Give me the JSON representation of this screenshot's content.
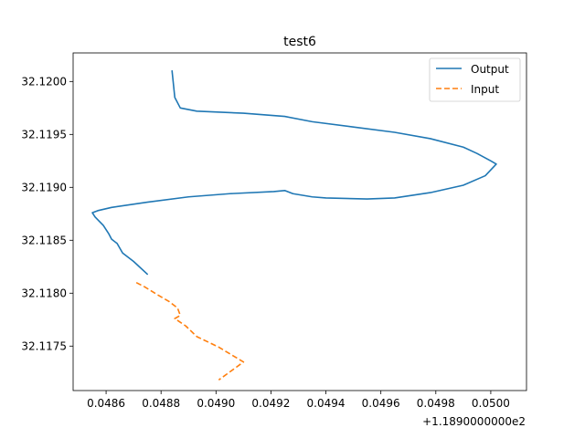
{
  "chart_data": {
    "type": "line",
    "title": "test6",
    "xlabel": "",
    "ylabel": "",
    "x_offset_label": "+1.1890000000e2",
    "x_tick_labels": [
      "0.0486",
      "0.0488",
      "0.0490",
      "0.0492",
      "0.0494",
      "0.0496",
      "0.0498",
      "0.0500"
    ],
    "y_tick_labels": [
      "32.1175",
      "32.1180",
      "32.1185",
      "32.1190",
      "32.1195",
      "32.1200"
    ],
    "xlim": [
      0.04848,
      0.05013
    ],
    "ylim": [
      32.11708,
      32.12027
    ],
    "grid": false,
    "legend": {
      "position": "upper-right",
      "entries": [
        "Output",
        "Input"
      ]
    },
    "colors": {
      "Output": "#1f77b4",
      "Input": "#ff7f0e"
    },
    "series": [
      {
        "name": "Output",
        "style": "solid",
        "points": [
          [
            0.04884,
            32.1201
          ],
          [
            0.04885,
            32.11985
          ],
          [
            0.04887,
            32.11975
          ],
          [
            0.04893,
            32.11972
          ],
          [
            0.0491,
            32.1197
          ],
          [
            0.04925,
            32.11967
          ],
          [
            0.04935,
            32.11962
          ],
          [
            0.0495,
            32.11957
          ],
          [
            0.04965,
            32.11952
          ],
          [
            0.04978,
            32.11946
          ],
          [
            0.0499,
            32.11938
          ],
          [
            0.04995,
            32.11932
          ],
          [
            0.05,
            32.11925
          ],
          [
            0.05002,
            32.11922
          ],
          [
            0.04998,
            32.11911
          ],
          [
            0.0499,
            32.11902
          ],
          [
            0.04978,
            32.11895
          ],
          [
            0.04965,
            32.1189
          ],
          [
            0.04955,
            32.11889
          ],
          [
            0.0494,
            32.1189
          ],
          [
            0.04935,
            32.11891
          ],
          [
            0.04928,
            32.11894
          ],
          [
            0.04925,
            32.11897
          ],
          [
            0.04921,
            32.11896
          ],
          [
            0.04905,
            32.11894
          ],
          [
            0.0489,
            32.11891
          ],
          [
            0.04875,
            32.11886
          ],
          [
            0.04862,
            32.11881
          ],
          [
            0.04857,
            32.11878
          ],
          [
            0.04855,
            32.11876
          ],
          [
            0.04856,
            32.11872
          ],
          [
            0.04859,
            32.11864
          ],
          [
            0.04861,
            32.11856
          ],
          [
            0.04862,
            32.11851
          ],
          [
            0.04864,
            32.11847
          ],
          [
            0.04866,
            32.11838
          ],
          [
            0.0487,
            32.1183
          ],
          [
            0.04875,
            32.11818
          ]
        ]
      },
      {
        "name": "Input",
        "style": "dashed",
        "points": [
          [
            0.04871,
            32.1181
          ],
          [
            0.04874,
            32.11806
          ],
          [
            0.04879,
            32.11798
          ],
          [
            0.04883,
            32.11792
          ],
          [
            0.04886,
            32.11786
          ],
          [
            0.04887,
            32.11779
          ],
          [
            0.04885,
            32.11776
          ],
          [
            0.04889,
            32.11769
          ],
          [
            0.04893,
            32.11759
          ],
          [
            0.04901,
            32.11749
          ],
          [
            0.0491,
            32.11735
          ],
          [
            0.04901,
            32.11718
          ]
        ]
      }
    ]
  }
}
